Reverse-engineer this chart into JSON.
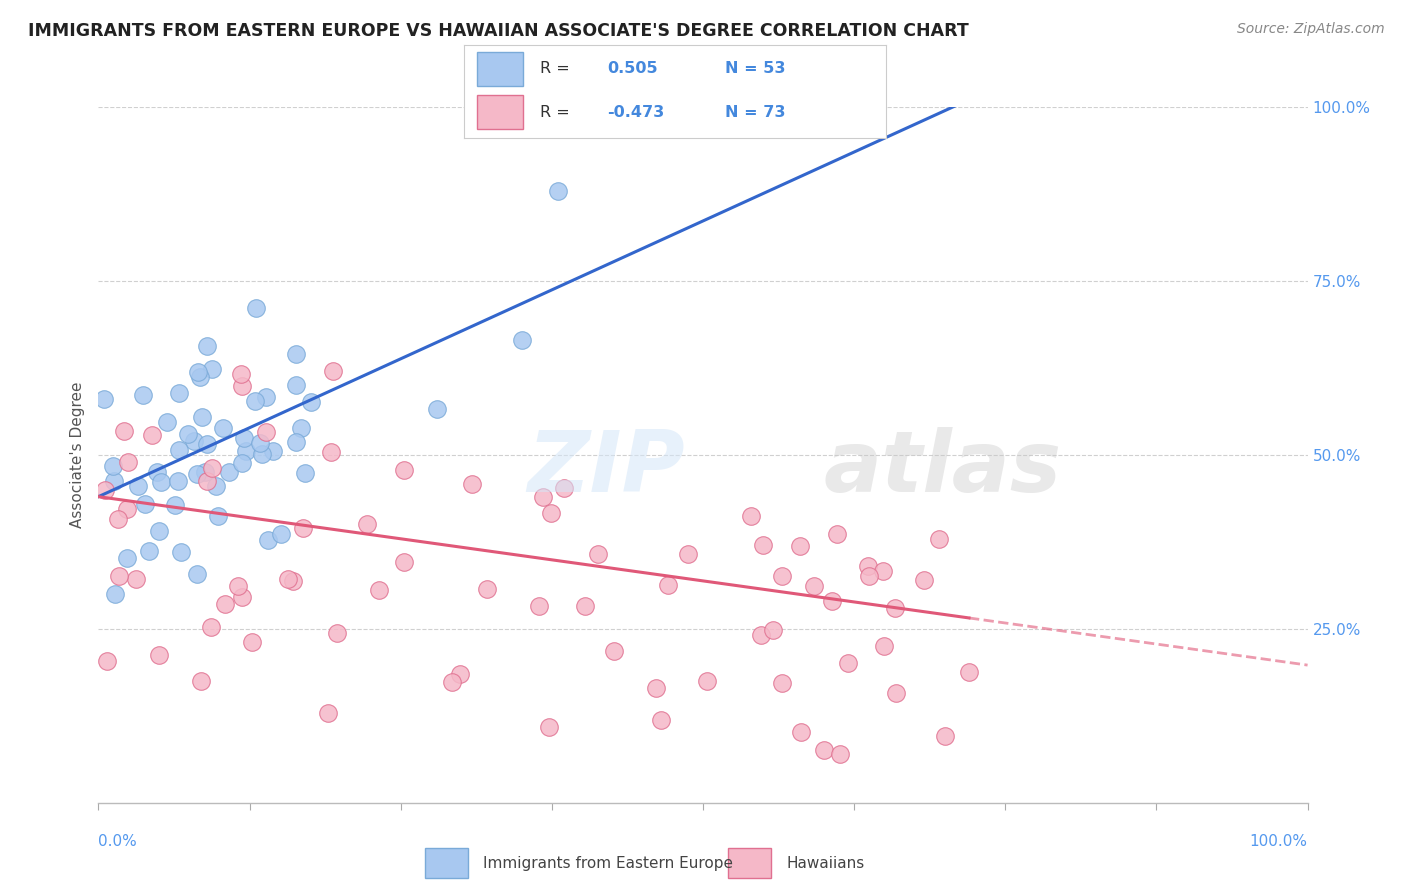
{
  "title": "IMMIGRANTS FROM EASTERN EUROPE VS HAWAIIAN ASSOCIATE'S DEGREE CORRELATION CHART",
  "source": "Source: ZipAtlas.com",
  "ylabel": "Associate's Degree",
  "blue_R": 0.505,
  "blue_N": 53,
  "pink_R": -0.473,
  "pink_N": 73,
  "blue_color": "#a8c8f0",
  "blue_edge": "#7aaad8",
  "pink_color": "#f5b8c8",
  "pink_edge": "#e07090",
  "blue_line_color": "#3366cc",
  "pink_line_color": "#e05878",
  "legend_label_blue": "Immigrants from Eastern Europe",
  "legend_label_pink": "Hawaiians",
  "background_color": "#ffffff",
  "grid_color": "#d0d0d0",
  "right_tick_color": "#5599ee",
  "bottom_tick_color": "#5599ee"
}
